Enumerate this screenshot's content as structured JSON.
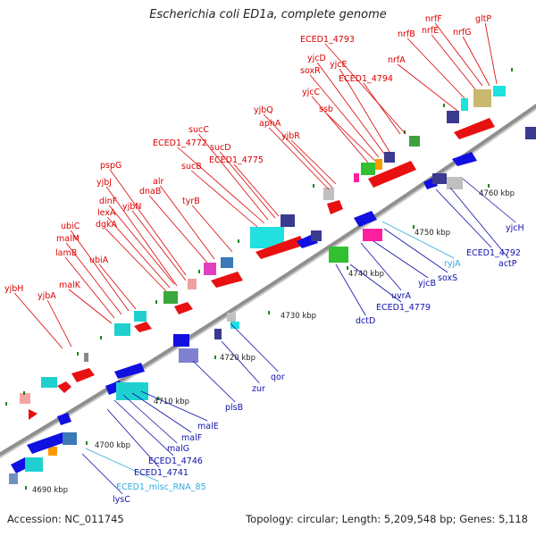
{
  "title": "Escherichia coli ED1a, complete genome",
  "footer": {
    "accession": "Accession: NC_011745",
    "stats": "Topology: circular; Length: 5,209,548 bp; Genes: 5,118"
  },
  "colors": {
    "top_strand_label": "#dd0000",
    "bottom_strand_label": "#1010aa",
    "rna_label": "#33aadd",
    "backbone": "#999999",
    "tick": "#228822"
  },
  "ticks": [
    "4690 kbp",
    "4700 kbp",
    "4710 kbp",
    "4720 kbp",
    "4730 kbp",
    "4740 kbp",
    "4750 kbp",
    "4760 kbp"
  ],
  "top_labels": [
    "yjbH",
    "yjbA",
    "malK",
    "lamB",
    "malM",
    "ubiC",
    "ubiA",
    "dgkA",
    "lexA",
    "dinF",
    "yjbN",
    "yjbJ",
    "pspG",
    "dnaB",
    "alr",
    "tyrB",
    "sucB",
    "ECED1_4772",
    "sucC",
    "sucD",
    "ECED1_4775",
    "aphA",
    "yjbQ",
    "yjbR",
    "ssb",
    "yjcC",
    "soxR",
    "yjcD",
    "yjcE",
    "ECED1_4793",
    "ECED1_4794",
    "nrfA",
    "nrfB",
    "nrfE",
    "nrfF",
    "nrfG",
    "gltP"
  ],
  "bottom_labels": [
    "lysC",
    "ECED1_misc_RNA_85",
    "ECED1_4741",
    "ECED1_4746",
    "malG",
    "malF",
    "malE",
    "plsB",
    "zur",
    "qor",
    "dctD",
    "ECED1_4779",
    "uvrA",
    "yjcB",
    "soxS",
    "ryjA",
    "ECED1_4792",
    "actP",
    "yjcH"
  ]
}
